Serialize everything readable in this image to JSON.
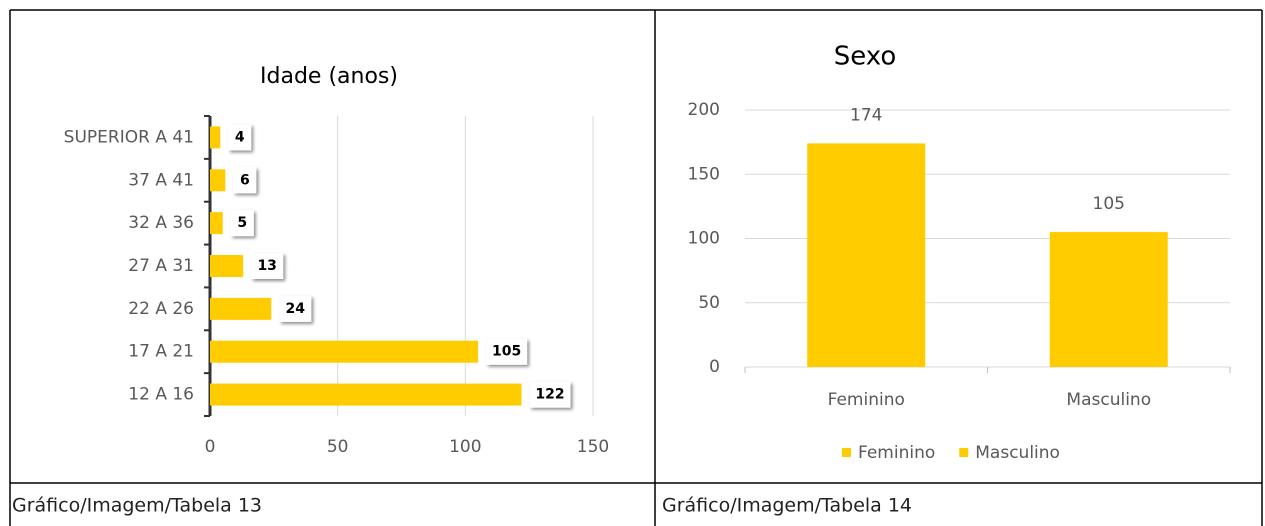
{
  "chart_data": [
    {
      "type": "hbar",
      "title": "Idade (anos)",
      "categories": [
        "12 A 16",
        "17 A 21",
        "22 A 26",
        "27 A 31",
        "32 A 36",
        "37 A 41",
        "SUPERIOR A 41"
      ],
      "values": [
        122,
        105,
        24,
        13,
        5,
        6,
        4
      ],
      "color": "#ffcc00",
      "xlim": [
        0,
        150
      ],
      "xticks": [
        0,
        50,
        100,
        150
      ],
      "grid": true
    },
    {
      "type": "bar",
      "title": "Sexo",
      "categories": [
        "Feminino",
        "Masculino"
      ],
      "values": [
        174,
        105
      ],
      "color": "#ffcc00",
      "ylim": [
        0,
        200
      ],
      "yticks": [
        0,
        50,
        100,
        150,
        200
      ],
      "grid": true,
      "legend": "bottom"
    }
  ],
  "captions": [
    "Gráfico/Imagem/Tabela 13",
    "Gráfico/Imagem/Tabela 14"
  ]
}
